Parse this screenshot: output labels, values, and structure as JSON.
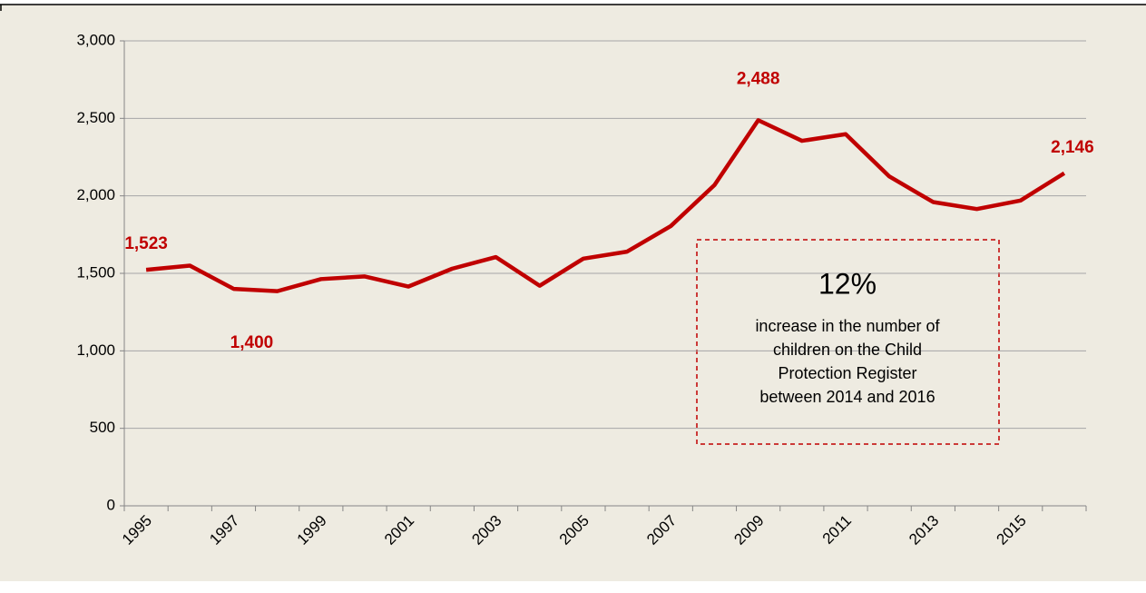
{
  "chart_data": {
    "type": "line",
    "categories": [
      "1995",
      null,
      "1997",
      null,
      "1999",
      null,
      "2001",
      null,
      "2003",
      null,
      "2005",
      null,
      "2007",
      null,
      "2009",
      null,
      "2011",
      null,
      "2013",
      null,
      "2015",
      null
    ],
    "series": [
      {
        "color": "#c00000",
        "values": [
          1523,
          1550,
          1400,
          1385,
          1463,
          1480,
          1415,
          1530,
          1605,
          1420,
          1595,
          1640,
          1805,
          2070,
          2488,
          2355,
          2398,
          2125,
          1960,
          1915,
          1970,
          2146
        ],
        "value_labels": [
          "1,523",
          null,
          "1,400",
          null,
          null,
          null,
          null,
          null,
          null,
          null,
          null,
          null,
          null,
          null,
          "2,488",
          null,
          null,
          null,
          null,
          null,
          null,
          "2,146"
        ]
      }
    ],
    "ylim": [
      0,
      3000
    ],
    "yticks": [
      0,
      500,
      {
        "value": 1000,
        "label": "1,000"
      },
      {
        "value": 1500,
        "label": "1,500"
      },
      {
        "value": 2000,
        "label": "2,000"
      },
      {
        "value": 2500,
        "label": "2,500"
      },
      {
        "value": 3000,
        "label": "3,000"
      }
    ],
    "grid": true,
    "annotation": {
      "headline": "12%",
      "text": [
        "increase in the number of",
        "children on the Child",
        "Protection Register",
        "between 2014 and 2016"
      ]
    }
  }
}
